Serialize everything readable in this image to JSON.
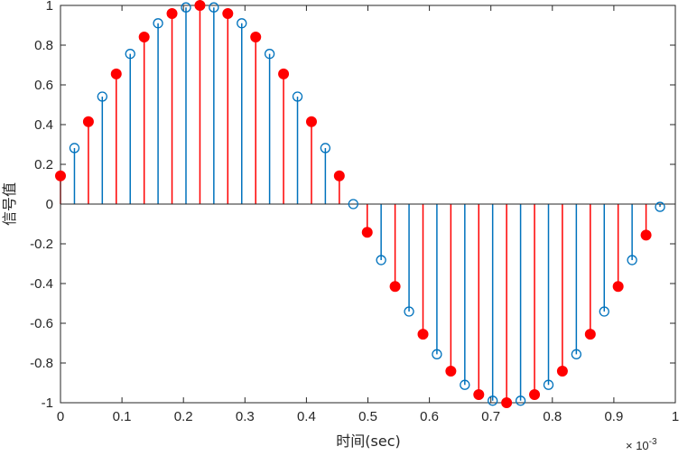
{
  "chart_data": {
    "type": "stem",
    "xlabel": "时间(sec)",
    "ylabel": "信号值",
    "x_multiplier_label": "× 10",
    "x_multiplier_exponent": "-3",
    "xlim": [
      0,
      1
    ],
    "ylim": [
      -1,
      1
    ],
    "x_ticks": [
      "0",
      "0.1",
      "0.2",
      "0.3",
      "0.4",
      "0.5",
      "0.6",
      "0.7",
      "0.8",
      "0.9",
      "1"
    ],
    "y_ticks": [
      "1",
      "0.8",
      "0.6",
      "0.4",
      "0.2",
      "0",
      "-0.2",
      "-0.4",
      "-0.6",
      "-0.8",
      "-1"
    ],
    "grid": false,
    "series": [
      {
        "marker": "open-circle",
        "color": "#0072BD",
        "x": [
          0.0227,
          0.068,
          0.1134,
          0.1587,
          0.2041,
          0.2494,
          0.2948,
          0.3401,
          0.3855,
          0.4308,
          0.4762,
          0.5215,
          0.5669,
          0.6122,
          0.6576,
          0.7029,
          0.7483,
          0.7937,
          0.839,
          0.8844,
          0.9297,
          0.9751
        ],
        "values": [
          0.282,
          0.541,
          0.756,
          0.91,
          0.99,
          0.99,
          0.91,
          0.756,
          0.541,
          0.282,
          0.0,
          -0.282,
          -0.541,
          -0.756,
          -0.91,
          -0.99,
          -0.99,
          -0.91,
          -0.756,
          -0.541,
          -0.282,
          -0.014
        ]
      },
      {
        "marker": "filled-circle",
        "color": "#FF0000",
        "x": [
          0.0,
          0.0454,
          0.0907,
          0.1361,
          0.1814,
          0.2268,
          0.2721,
          0.3175,
          0.3628,
          0.4082,
          0.4535,
          0.4989,
          0.5442,
          0.5896,
          0.6349,
          0.6803,
          0.7256,
          0.771,
          0.8163,
          0.8617,
          0.907,
          0.9524
        ],
        "values": [
          0.142,
          0.415,
          0.655,
          0.841,
          0.959,
          1.0,
          0.959,
          0.841,
          0.655,
          0.415,
          0.142,
          -0.142,
          -0.415,
          -0.655,
          -0.841,
          -0.959,
          -1.0,
          -0.959,
          -0.841,
          -0.655,
          -0.415,
          -0.156
        ]
      }
    ]
  }
}
